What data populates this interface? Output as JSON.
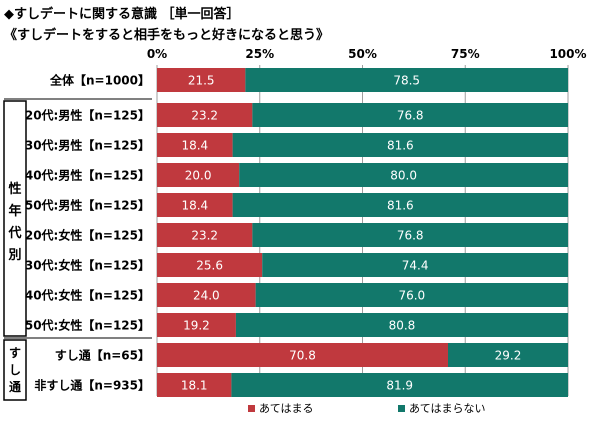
{
  "title": "◆すしデートに関する意識 ［単一回答］",
  "subtitle": "《すしデートをすると相手をもっと好きになると思う》",
  "colors": {
    "yes": "#c0393e",
    "no": "#12786b",
    "bar_text": "#ffffff"
  },
  "group_labels": {
    "age_gender": [
      "性",
      "年",
      "代",
      "別"
    ],
    "sushi_dating": [
      "す",
      "し",
      "通"
    ]
  },
  "chart_data": {
    "type": "bar",
    "orientation": "horizontal",
    "stacked": true,
    "xlim": [
      0,
      100
    ],
    "xticks": [
      "0%",
      "25%",
      "50%",
      "75%",
      "100%"
    ],
    "grid": true,
    "legend_position": "bottom",
    "categories": [
      "全体【n=1000】",
      "20代:男性【n=125】",
      "30代:男性【n=125】",
      "40代:男性【n=125】",
      "50代:男性【n=125】",
      "20代:女性【n=125】",
      "30代:女性【n=125】",
      "40代:女性【n=125】",
      "50代:女性【n=125】",
      "すし通【n=65】",
      "非すし通【n=935】"
    ],
    "series": [
      {
        "name": "あてはまる",
        "values": [
          "21.5",
          "23.2",
          "18.4",
          "20.0",
          "18.4",
          "23.2",
          "25.6",
          "24.0",
          "19.2",
          "70.8",
          "18.1"
        ]
      },
      {
        "name": "あてはまらない",
        "values": [
          "78.5",
          "76.8",
          "81.6",
          "80.0",
          "81.6",
          "76.8",
          "74.4",
          "76.0",
          "80.8",
          "29.2",
          "81.9"
        ]
      }
    ]
  }
}
